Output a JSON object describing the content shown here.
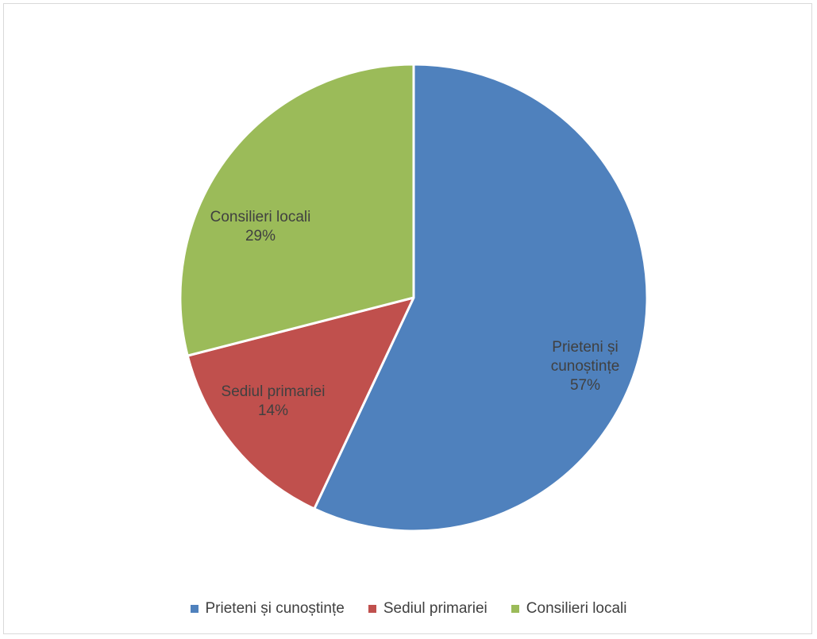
{
  "chart_data": {
    "type": "pie",
    "title": "",
    "legend_position": "bottom",
    "slices": [
      {
        "name": "Prieteni și cunoștințe",
        "label_lines": [
          "Prieteni și",
          "cunoștințe"
        ],
        "value": 57,
        "display": "57%",
        "color": "#4f81bd"
      },
      {
        "name": "Sediul primariei",
        "label_lines": [
          "Sediul primariei"
        ],
        "value": 14,
        "display": "14%",
        "color": "#c0504d"
      },
      {
        "name": "Consilieri locali",
        "label_lines": [
          "Consilieri locali"
        ],
        "value": 29,
        "display": "29%",
        "color": "#9bbb59"
      }
    ]
  }
}
